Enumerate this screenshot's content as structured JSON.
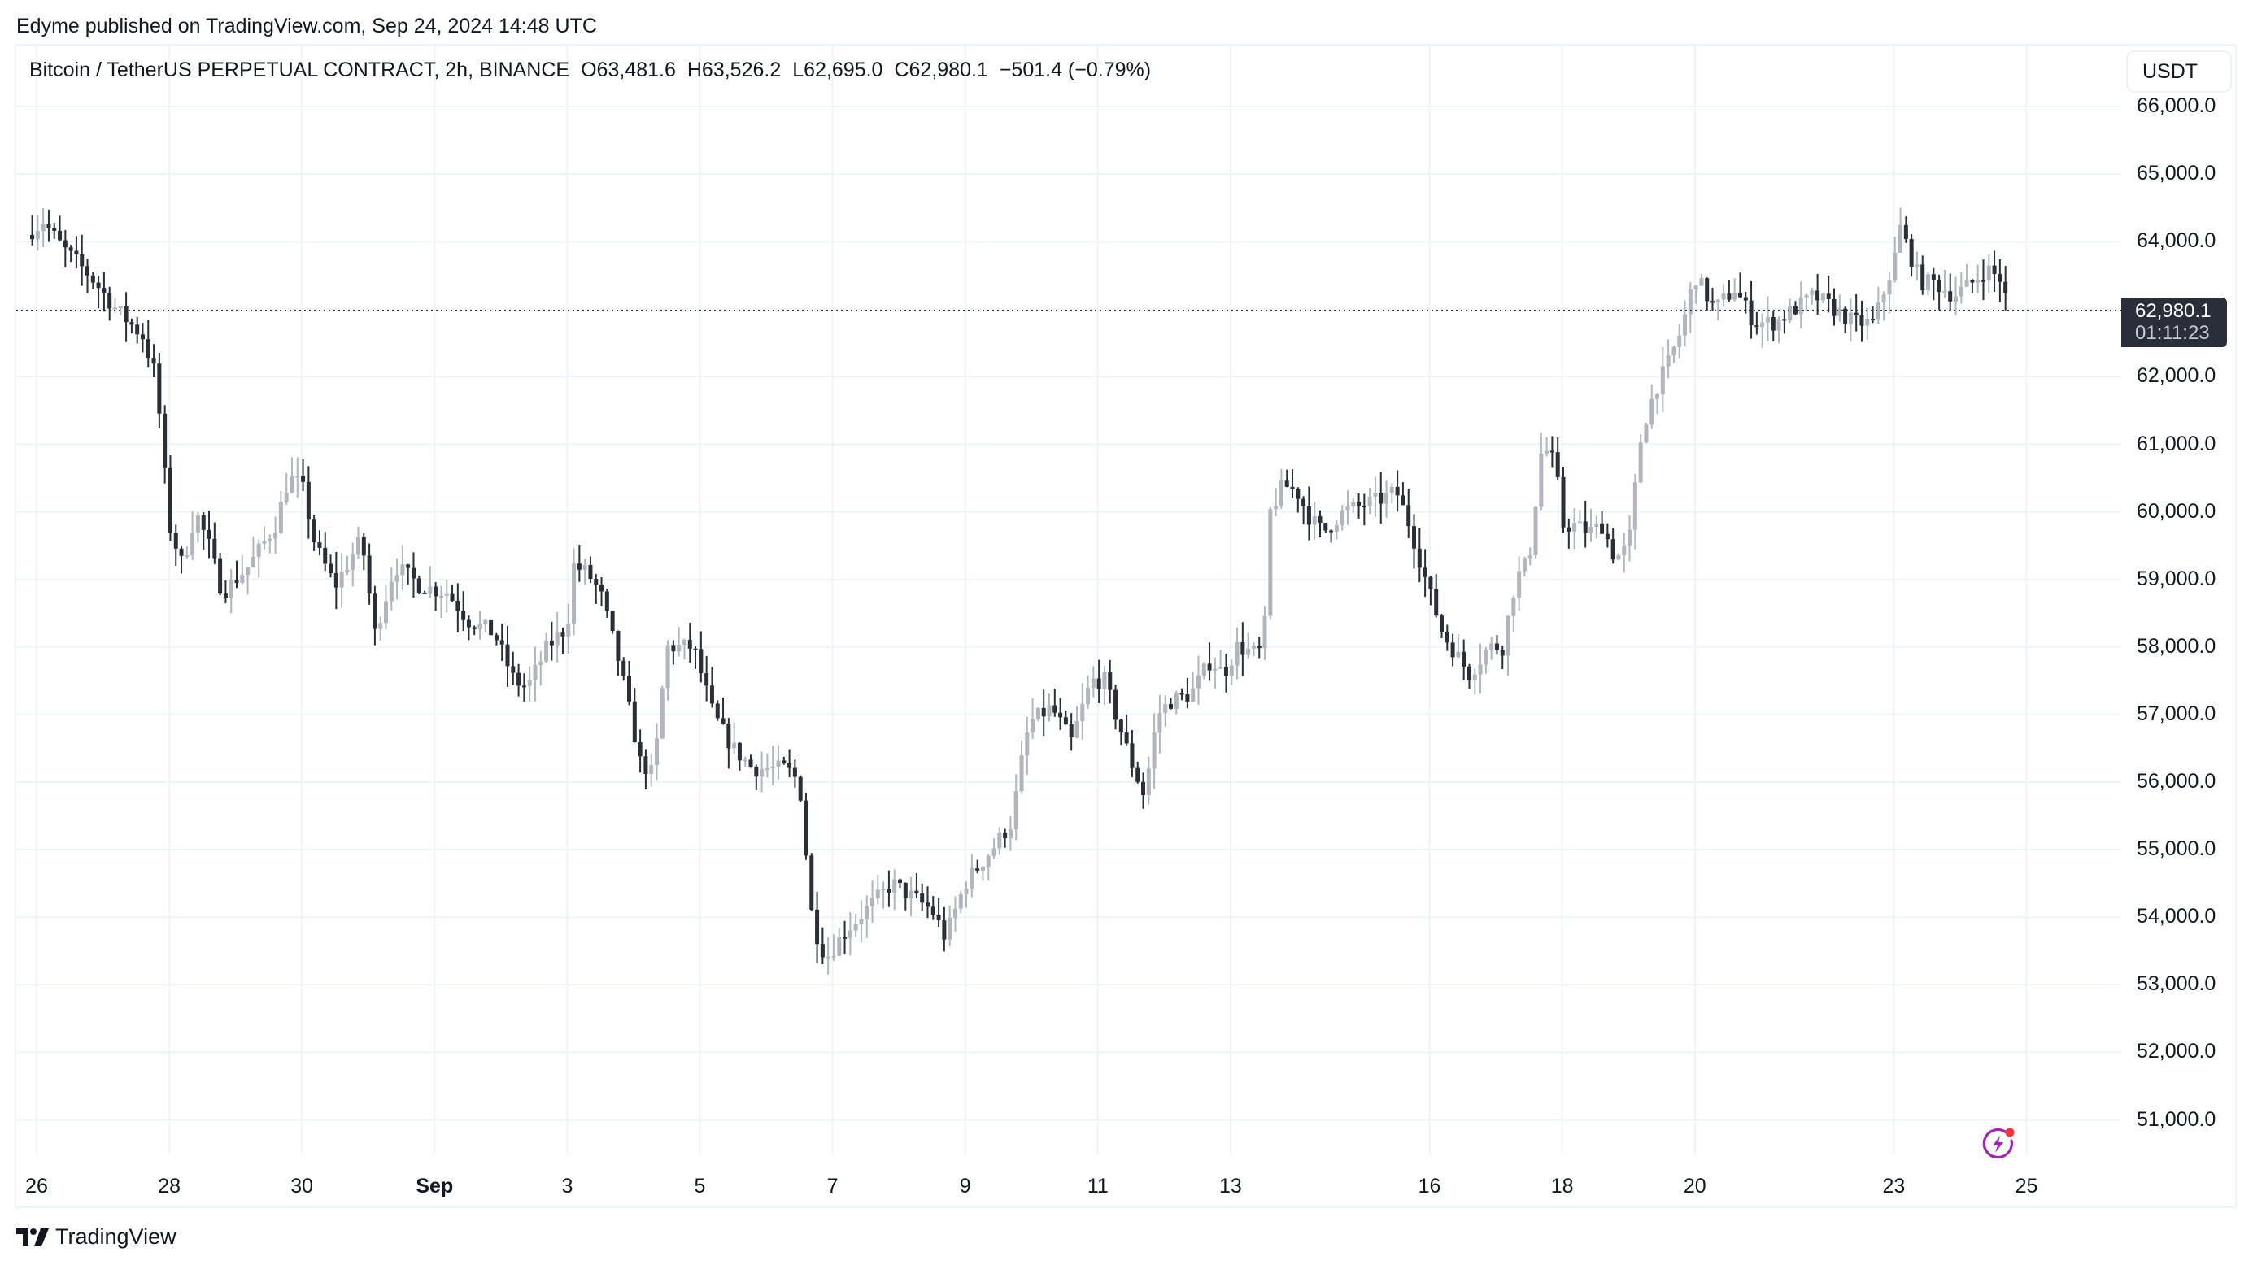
{
  "header": {
    "published": "Edyme published on TradingView.com, Sep 24, 2024 14:48 UTC"
  },
  "legend": {
    "symbol": "Bitcoin / TetherUS PERPETUAL CONTRACT, 2h, BINANCE",
    "open": "O63,481.6",
    "high": "H63,526.2",
    "low": "L62,695.0",
    "close": "C62,980.1",
    "change": "−501.4 (−0.79%)"
  },
  "unit_button": "USDT",
  "current_price": {
    "value": "62,980.1",
    "countdown": "01:11:23"
  },
  "footer": {
    "brand": "TradingView"
  },
  "icons": {
    "bolt": "lightning-alert-icon",
    "logo": "tradingview-logo-icon"
  },
  "colors": {
    "up_candle": "#b2b5be",
    "down_candle": "#2a2e39",
    "grid": "#f0f3fa",
    "price_line": "#2a2e39",
    "price_tag_bg": "#2a2e39",
    "bolt": "#9c27b0",
    "bolt_dot": "#f23645"
  },
  "chart_data": {
    "type": "candlestick",
    "title": "Bitcoin / TetherUS PERPETUAL CONTRACT, 2h, BINANCE",
    "xlabel": "",
    "ylabel": "USDT",
    "ylim": [
      50300,
      66300
    ],
    "grid": true,
    "interval": "2h",
    "x_ticks": [
      {
        "label": "26",
        "day": 0,
        "bold": false
      },
      {
        "label": "28",
        "day": 2,
        "bold": false
      },
      {
        "label": "30",
        "day": 4,
        "bold": false
      },
      {
        "label": "Sep",
        "day": 6,
        "bold": true
      },
      {
        "label": "3",
        "day": 8,
        "bold": false
      },
      {
        "label": "5",
        "day": 10,
        "bold": false
      },
      {
        "label": "7",
        "day": 12,
        "bold": false
      },
      {
        "label": "9",
        "day": 14,
        "bold": false
      },
      {
        "label": "11",
        "day": 16,
        "bold": false
      },
      {
        "label": "13",
        "day": 18,
        "bold": false
      },
      {
        "label": "16",
        "day": 21,
        "bold": false
      },
      {
        "label": "18",
        "day": 23,
        "bold": false
      },
      {
        "label": "20",
        "day": 25,
        "bold": false
      },
      {
        "label": "23",
        "day": 28,
        "bold": false
      },
      {
        "label": "25",
        "day": 30,
        "bold": false
      }
    ],
    "y_ticks": [
      66000,
      65000,
      64000,
      62000,
      61000,
      60000,
      59000,
      58000,
      57000,
      56000,
      55000,
      54000,
      53000,
      52000,
      51000
    ],
    "y_tick_labels": [
      "66,000.0",
      "65,000.0",
      "64,000.0",
      "62,000.0",
      "61,000.0",
      "60,000.0",
      "59,000.0",
      "58,000.0",
      "57,000.0",
      "56,000.0",
      "55,000.0",
      "54,000.0",
      "53,000.0",
      "52,000.0",
      "51,000.0"
    ],
    "current_price": 62980.1,
    "last_candle": {
      "open": 63481.6,
      "high": 63526.2,
      "low": 62695.0,
      "close": 62980.1,
      "change": -501.4,
      "change_pct": -0.79
    },
    "close_path_note": "Approximate close keypoints per day offset (2h candles, 12/day), read from gridlines",
    "close_keypoints": [
      [
        -0.15,
        64100
      ],
      [
        0.1,
        64300
      ],
      [
        0.4,
        63900
      ],
      [
        0.8,
        63500
      ],
      [
        1.2,
        63000
      ],
      [
        1.6,
        62600
      ],
      [
        1.8,
        62000
      ],
      [
        2.0,
        59800
      ],
      [
        2.2,
        59200
      ],
      [
        2.4,
        60000
      ],
      [
        2.6,
        59500
      ],
      [
        2.8,
        58800
      ],
      [
        3.2,
        59200
      ],
      [
        3.6,
        59800
      ],
      [
        3.8,
        60500
      ],
      [
        4.0,
        60400
      ],
      [
        4.2,
        59500
      ],
      [
        4.5,
        58900
      ],
      [
        4.9,
        59600
      ],
      [
        5.1,
        58200
      ],
      [
        5.4,
        59200
      ],
      [
        5.8,
        58900
      ],
      [
        6.2,
        58800
      ],
      [
        6.5,
        58400
      ],
      [
        6.9,
        58200
      ],
      [
        7.2,
        57500
      ],
      [
        7.4,
        57400
      ],
      [
        7.7,
        58000
      ],
      [
        8.0,
        58300
      ],
      [
        8.1,
        59200
      ],
      [
        8.3,
        59100
      ],
      [
        8.5,
        58800
      ],
      [
        8.8,
        57700
      ],
      [
        9.1,
        56300
      ],
      [
        9.3,
        56100
      ],
      [
        9.5,
        58000
      ],
      [
        9.9,
        58000
      ],
      [
        10.2,
        57000
      ],
      [
        10.5,
        56500
      ],
      [
        10.8,
        56200
      ],
      [
        11.3,
        56200
      ],
      [
        11.5,
        56000
      ],
      [
        11.7,
        53900
      ],
      [
        11.9,
        53400
      ],
      [
        12.2,
        53800
      ],
      [
        12.6,
        54200
      ],
      [
        12.9,
        54500
      ],
      [
        13.2,
        54300
      ],
      [
        13.5,
        54100
      ],
      [
        13.7,
        53700
      ],
      [
        14.0,
        54500
      ],
      [
        14.4,
        55000
      ],
      [
        14.7,
        55400
      ],
      [
        14.9,
        56600
      ],
      [
        15.0,
        56900
      ],
      [
        15.3,
        57100
      ],
      [
        15.6,
        56600
      ],
      [
        15.9,
        57500
      ],
      [
        16.1,
        57500
      ],
      [
        16.3,
        56900
      ],
      [
        16.5,
        56300
      ],
      [
        16.7,
        55800
      ],
      [
        16.9,
        57000
      ],
      [
        17.1,
        57200
      ],
      [
        17.4,
        57300
      ],
      [
        17.7,
        57800
      ],
      [
        17.9,
        57600
      ],
      [
        18.1,
        58000
      ],
      [
        18.4,
        57900
      ],
      [
        18.5,
        58000
      ],
      [
        18.6,
        60000
      ],
      [
        18.8,
        60400
      ],
      [
        19.0,
        60300
      ],
      [
        19.2,
        59900
      ],
      [
        19.4,
        59700
      ],
      [
        19.7,
        60000
      ],
      [
        20.0,
        60100
      ],
      [
        20.3,
        60200
      ],
      [
        20.5,
        60300
      ],
      [
        20.7,
        59800
      ],
      [
        21.0,
        58800
      ],
      [
        21.2,
        58200
      ],
      [
        21.4,
        57900
      ],
      [
        21.6,
        57600
      ],
      [
        21.9,
        58000
      ],
      [
        22.1,
        58000
      ],
      [
        22.3,
        59000
      ],
      [
        22.5,
        59300
      ],
      [
        22.7,
        61000
      ],
      [
        22.9,
        60700
      ],
      [
        23.0,
        59800
      ],
      [
        23.2,
        59800
      ],
      [
        23.4,
        59700
      ],
      [
        23.6,
        59800
      ],
      [
        23.8,
        59300
      ],
      [
        24.0,
        59500
      ],
      [
        24.2,
        61200
      ],
      [
        24.4,
        61800
      ],
      [
        24.6,
        62200
      ],
      [
        24.8,
        62700
      ],
      [
        25.0,
        63500
      ],
      [
        25.3,
        63000
      ],
      [
        25.6,
        63300
      ],
      [
        25.9,
        62800
      ],
      [
        26.2,
        62800
      ],
      [
        26.5,
        63000
      ],
      [
        26.8,
        63200
      ],
      [
        27.1,
        63000
      ],
      [
        27.4,
        62800
      ],
      [
        27.7,
        62800
      ],
      [
        28.0,
        63700
      ],
      [
        28.1,
        64200
      ],
      [
        28.4,
        63400
      ],
      [
        28.6,
        63400
      ],
      [
        28.9,
        63200
      ],
      [
        29.2,
        63400
      ],
      [
        29.4,
        63600
      ],
      [
        29.6,
        63450
      ],
      [
        29.75,
        62980.1
      ]
    ]
  }
}
